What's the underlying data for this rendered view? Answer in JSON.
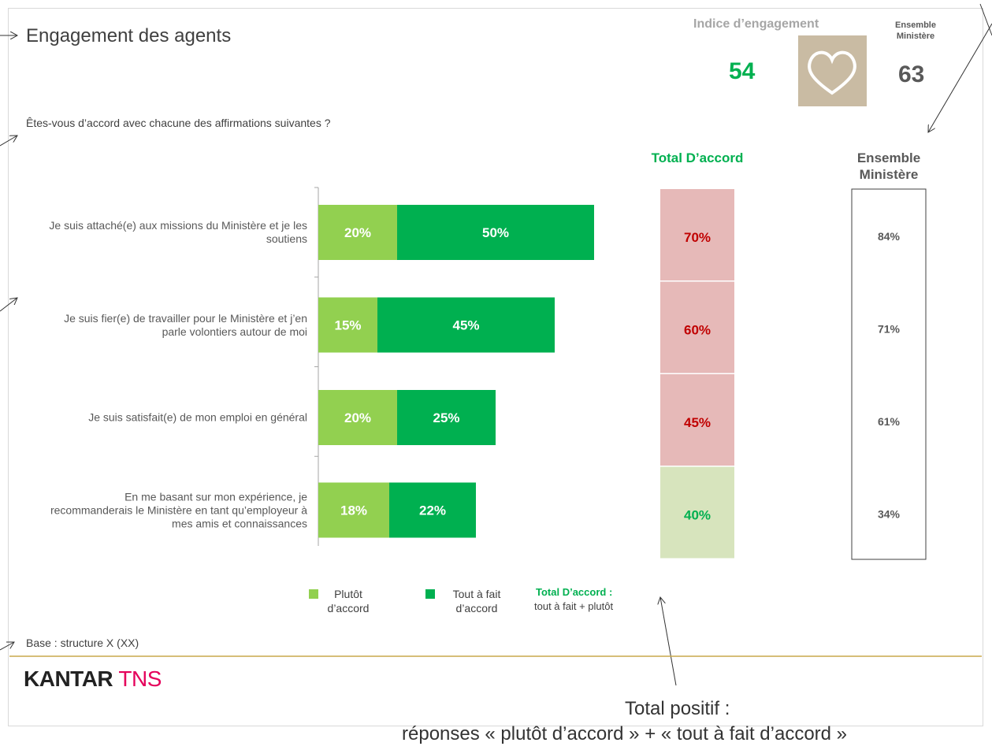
{
  "header": {
    "title": "Engagement des agents",
    "index_label": "Indice d’engagement",
    "index_value": 54,
    "ensemble_label": "Ensemble Ministère",
    "ensemble_value": 63
  },
  "question": "Êtes-vous d’accord avec chacune des affirmations suivantes ?",
  "chart_data": {
    "type": "bar",
    "orientation": "horizontal",
    "stacked": true,
    "categories": [
      "Je suis attaché(e) aux missions du Ministère et je les soutiens",
      "Je suis fier(e) de travailler pour le Ministère et j’en parle volontiers autour de moi",
      "Je suis satisfait(e) de mon emploi en général",
      "En me basant sur mon expérience, je recommanderais le Ministère en tant qu’employeur à mes amis et connaissances"
    ],
    "series": [
      {
        "name": "Plutôt d’accord",
        "color": "#92d050",
        "values": [
          20,
          15,
          20,
          18
        ],
        "value_labels": [
          "20%",
          "15%",
          "20%",
          "18%"
        ]
      },
      {
        "name": "Tout à fait d’accord",
        "color": "#00b050",
        "values": [
          50,
          45,
          25,
          22
        ],
        "value_labels": [
          "50%",
          "45%",
          "25%",
          "22%"
        ]
      }
    ],
    "xlim": [
      0,
      100
    ]
  },
  "totals": {
    "title": "Total D’accord",
    "values": [
      70,
      60,
      45,
      40
    ],
    "value_labels": [
      "70%",
      "60%",
      "45%",
      "40%"
    ],
    "fills": [
      "#e6b9b8",
      "#e6b9b8",
      "#e6b9b8",
      "#d7e4bd"
    ],
    "text_colors": [
      "#c00000",
      "#c00000",
      "#c00000",
      "#00b050"
    ]
  },
  "ensemble": {
    "title": "Ensemble Ministère",
    "values": [
      84,
      71,
      61,
      34
    ],
    "value_labels": [
      "84%",
      "71%",
      "61%",
      "34%"
    ]
  },
  "legend_note": {
    "title": "Total D’accord :",
    "text": "tout à fait + plutôt"
  },
  "base": "Base : structure X (XX)",
  "logo": {
    "part1": "KANTAR",
    "part2": "TNS"
  },
  "annotation": {
    "title": "Total positif :",
    "text": "réponses « plutôt d’accord » + « tout à fait d’accord »"
  }
}
